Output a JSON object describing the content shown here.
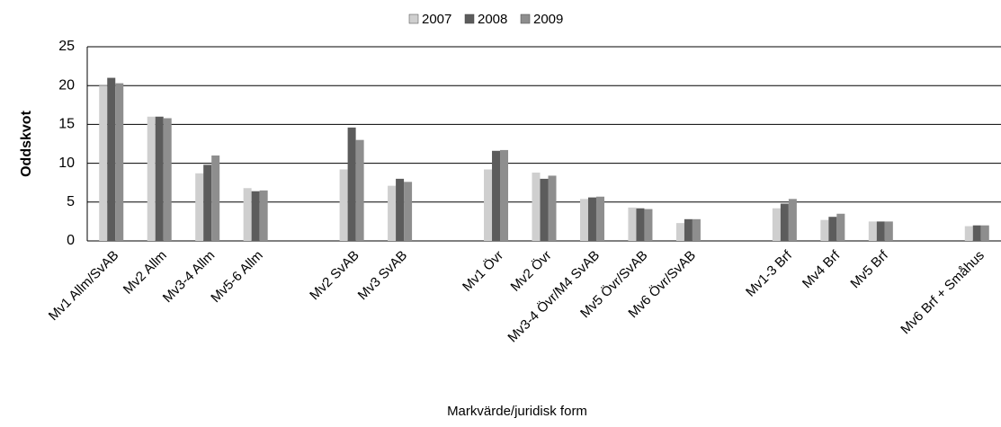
{
  "chart_data": {
    "type": "bar",
    "x_label": "Markvärde/juridisk form",
    "y_label": "Oddskvot",
    "categories": [
      "Mv1 Allm/SvAB",
      "Mv2 Allm",
      "Mv3-4 Allm",
      "Mv5-6 Allm",
      null,
      "Mv2 SvAB",
      "Mv3 SvAB",
      null,
      "Mv1 Övr",
      "Mv2 Övr",
      "Mv3-4 Övr/M4 SvAB",
      "Mv5 Övr/SvAB",
      "Mv6 Övr/SvAB",
      null,
      "Mv1-3 Brf",
      "Mv4 Brf",
      "Mv5 Brf",
      null,
      "Mv6 Brf + Småhus"
    ],
    "series": [
      {
        "name": "2007",
        "color": "#cfcfcf",
        "values": [
          20,
          16,
          8.7,
          6.8,
          null,
          9.2,
          7.1,
          null,
          9.2,
          8.8,
          5.4,
          4.3,
          2.3,
          null,
          4.2,
          2.7,
          2.5,
          null,
          1.9
        ]
      },
      {
        "name": "2008",
        "color": "#5c5c5c",
        "values": [
          21,
          16,
          9.8,
          6.4,
          null,
          14.6,
          8,
          null,
          11.6,
          8,
          5.6,
          4.2,
          2.8,
          null,
          4.8,
          3.1,
          2.5,
          null,
          2
        ]
      },
      {
        "name": "2009",
        "color": "#8e8e8e",
        "values": [
          20.3,
          15.8,
          11,
          6.5,
          null,
          13,
          7.6,
          null,
          11.7,
          8.4,
          5.7,
          4.1,
          2.8,
          null,
          5.4,
          3.5,
          2.5,
          null,
          2
        ]
      }
    ],
    "ylim": [
      0,
      25
    ],
    "yticks": [
      0,
      5,
      10,
      15,
      20,
      25
    ],
    "grid": true,
    "legend": "top"
  }
}
